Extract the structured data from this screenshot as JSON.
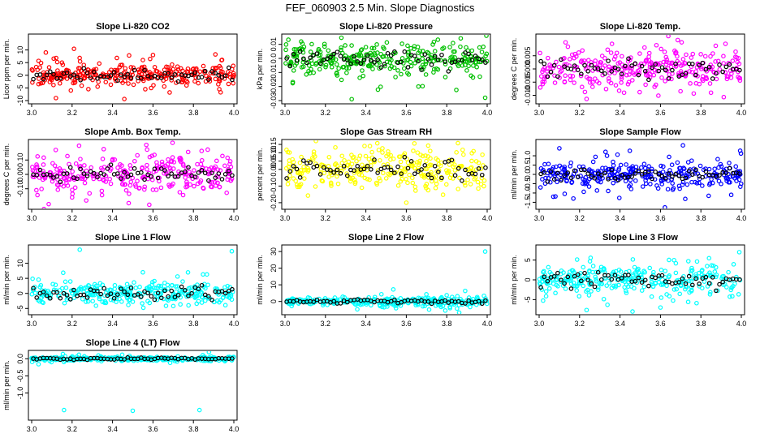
{
  "title": "FEF_060903  2.5 Min. Slope Diagnostics",
  "colors": {
    "overlay": "#000000",
    "axis": "#000000"
  },
  "chart_data": [
    {
      "type": "scatter",
      "title": "Slope Li-820 CO2",
      "ylabel": "Licor ppm per min.",
      "xlim": [
        3.0,
        4.0
      ],
      "ylim": [
        -10,
        15
      ],
      "xticks": [
        "3.0",
        "3.2",
        "3.4",
        "3.6",
        "3.8",
        "4.0"
      ],
      "yticks": [
        -10,
        -5,
        0,
        5,
        10
      ],
      "ytick_labels": [
        "-10",
        "-5",
        "0",
        "5",
        "10"
      ],
      "color": "#ff0000",
      "spread": 2.0,
      "n": 300,
      "outliers": [
        [
          3.07,
          9
        ],
        [
          3.12,
          -9
        ],
        [
          3.6,
          8
        ],
        [
          3.55,
          6
        ],
        [
          3.15,
          5
        ]
      ]
    },
    {
      "type": "scatter",
      "title": "Slope Li-820 Pressure",
      "ylabel": "kPa per min.",
      "xlim": [
        3.0,
        4.0
      ],
      "ylim": [
        -0.03,
        0.015
      ],
      "xticks": [
        "3.0",
        "3.2",
        "3.4",
        "3.6",
        "3.8",
        "4.0"
      ],
      "yticks": [
        -0.03,
        -0.02,
        -0.01,
        0,
        0.01
      ],
      "ytick_labels": [
        "-0.03",
        "-0.02",
        "-0.01",
        "0.0",
        "0.01"
      ],
      "color": "#00c000",
      "spread": 0.006,
      "n": 300,
      "outliers": [
        [
          3.33,
          -0.029
        ],
        [
          3.66,
          -0.02
        ],
        [
          3.99,
          -0.028
        ],
        [
          3.08,
          0.012
        ]
      ]
    },
    {
      "type": "scatter",
      "title": "Slope Li-820 Temp.",
      "ylabel": "degrees C per min.",
      "xlim": [
        3.0,
        4.0
      ],
      "ylim": [
        -0.012,
        0.012
      ],
      "xticks": [
        "3.0",
        "3.2",
        "3.4",
        "3.6",
        "3.8",
        "4.0"
      ],
      "yticks": [
        -0.01,
        -0.005,
        0,
        0.005
      ],
      "ytick_labels": [
        "-0.010",
        "-0.005",
        "0.000",
        "0.005"
      ],
      "color": "#ff00ff",
      "spread": 0.0035,
      "n": 300,
      "outliers": [
        [
          3.58,
          0.009
        ],
        [
          3.85,
          -0.009
        ],
        [
          3.42,
          -0.009
        ]
      ]
    },
    {
      "type": "scatter",
      "title": "Slope Amb. Box Temp.",
      "ylabel": "degrees C per min.",
      "xlim": [
        3.0,
        4.0
      ],
      "ylim": [
        -0.22,
        0.22
      ],
      "xticks": [
        "3.0",
        "3.2",
        "3.4",
        "3.6",
        "3.8",
        "4.0"
      ],
      "yticks": [
        -0.1,
        0,
        0.1
      ],
      "ytick_labels": [
        "-0.10",
        "0.00",
        "0.10"
      ],
      "color": "#ff00ff",
      "spread": 0.06,
      "n": 300,
      "outliers": [
        [
          3.48,
          -0.2
        ],
        [
          3.2,
          -0.16
        ]
      ]
    },
    {
      "type": "scatter",
      "title": "Slope Gas Stream RH",
      "ylabel": "percent per min.",
      "xlim": [
        3.0,
        4.0
      ],
      "ylim": [
        -0.22,
        0.16
      ],
      "xticks": [
        "3.0",
        "3.2",
        "3.4",
        "3.6",
        "3.8",
        "4.0"
      ],
      "yticks": [
        -0.2,
        -0.1,
        0,
        0.05,
        0.1,
        0.15
      ],
      "ytick_labels": [
        "-0.20",
        "-0.10",
        "0.00",
        "0.05",
        "0.10",
        "0.15"
      ],
      "color": "#ffff00",
      "spread": 0.06,
      "n": 300,
      "outliers": [
        [
          3.6,
          -0.2
        ],
        [
          3.42,
          0.14
        ]
      ]
    },
    {
      "type": "scatter",
      "title": "Slope Sample Flow",
      "ylabel": "ml/min per min.",
      "xlim": [
        3.0,
        4.0
      ],
      "ylim": [
        -1.7,
        1.7
      ],
      "xticks": [
        "3.0",
        "3.2",
        "3.4",
        "3.6",
        "3.8",
        "4.0"
      ],
      "yticks": [
        -1.5,
        -1,
        -0.5,
        0,
        0.5,
        1
      ],
      "ytick_labels": [
        "-1.5",
        "-1.0",
        "-0.5",
        "0.0",
        "0.5",
        "1.0"
      ],
      "color": "#0000ff",
      "spread": 0.35,
      "n": 300,
      "outliers": [
        [
          3.1,
          1.4
        ],
        [
          3.07,
          -1.2
        ],
        [
          3.95,
          -1.1
        ]
      ]
    },
    {
      "type": "scatter",
      "title": "Slope Line 1 Flow",
      "ylabel": "ml/min per min.",
      "xlim": [
        3.0,
        4.0
      ],
      "ylim": [
        -6,
        15
      ],
      "xticks": [
        "3.0",
        "3.2",
        "3.4",
        "3.6",
        "3.8",
        "4.0"
      ],
      "yticks": [
        -5,
        0,
        5,
        10
      ],
      "ytick_labels": [
        "-5",
        "0",
        "5",
        "10"
      ],
      "color": "#00ffff",
      "spread": 1.8,
      "n": 300,
      "outliers": [
        [
          3.99,
          14
        ],
        [
          3.55,
          7
        ]
      ]
    },
    {
      "type": "scatter",
      "title": "Slope Line 2 Flow",
      "ylabel": "ml/min per min.",
      "xlim": [
        3.0,
        4.0
      ],
      "ylim": [
        -6,
        32
      ],
      "xticks": [
        "3.0",
        "3.2",
        "3.4",
        "3.6",
        "3.8",
        "4.0"
      ],
      "yticks": [
        0,
        10,
        20,
        30
      ],
      "ytick_labels": [
        "0",
        "10",
        "20",
        "30"
      ],
      "color": "#00ffff",
      "spread": 1.2,
      "n": 300,
      "outliers": [
        [
          3.99,
          30
        ]
      ]
    },
    {
      "type": "scatter",
      "title": "Slope Line 3 Flow",
      "ylabel": "ml/min per min.",
      "xlim": [
        3.0,
        4.0
      ],
      "ylim": [
        -8,
        8
      ],
      "xticks": [
        "3.0",
        "3.2",
        "3.4",
        "3.6",
        "3.8",
        "4.0"
      ],
      "yticks": [
        -5,
        0,
        5
      ],
      "ytick_labels": [
        "-5",
        "0",
        "5"
      ],
      "color": "#00ffff",
      "spread": 1.8,
      "n": 300,
      "outliers": [
        [
          3.99,
          7
        ],
        [
          3.6,
          -7
        ]
      ]
    },
    {
      "type": "scatter",
      "title": "Slope Line 4 (LT) Flow",
      "ylabel": "ml/min per min.",
      "xlim": [
        3.0,
        4.0
      ],
      "ylim": [
        -1.7,
        0.15
      ],
      "xticks": [
        "3.0",
        "3.2",
        "3.4",
        "3.6",
        "3.8",
        "4.0"
      ],
      "yticks": [
        -1,
        -0.5,
        0
      ],
      "ytick_labels": [
        "-1.0",
        "-0.5",
        "0.0"
      ],
      "color": "#00ffff",
      "spread": 0.03,
      "n": 300,
      "outliers": [
        [
          3.16,
          -1.5
        ],
        [
          3.5,
          -1.52
        ],
        [
          3.83,
          -1.5
        ]
      ]
    }
  ]
}
